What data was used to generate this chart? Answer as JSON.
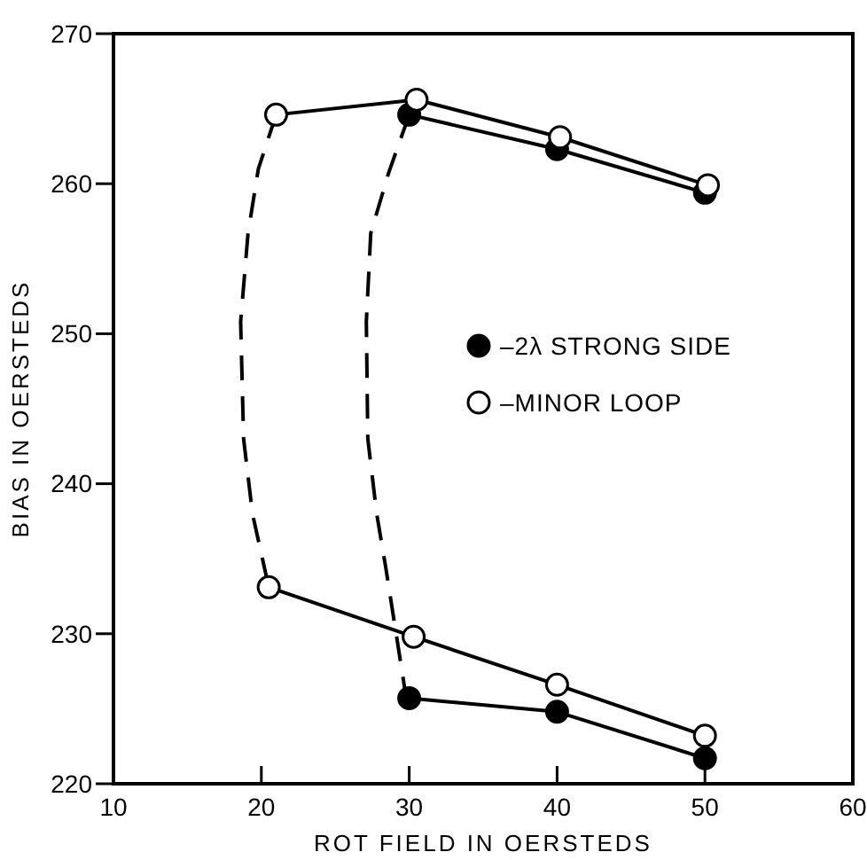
{
  "chart_data": {
    "type": "line",
    "xlabel": "ROT FIELD IN OERSTEDS",
    "ylabel": "BIAS IN OERSTEDS",
    "xlim": [
      10,
      60
    ],
    "xticks": [
      10,
      20,
      30,
      40,
      50,
      60
    ],
    "ylim": [
      220,
      270
    ],
    "yticks": [
      220,
      230,
      240,
      250,
      260,
      270
    ],
    "legend": "right",
    "series": [
      {
        "line_style": "dashed",
        "marker": "none",
        "color": "#000000",
        "x": [
          21,
          19.8,
          19.1,
          18.6,
          18.8,
          19.4,
          20.5
        ],
        "values": [
          264.6,
          261,
          256.7,
          250.8,
          243,
          238,
          233.1
        ]
      },
      {
        "line_style": "dashed",
        "marker": "none",
        "color": "#000000",
        "x": [
          30,
          28.6,
          27.4,
          27.1,
          27.2,
          27.8,
          28.4,
          29.8
        ],
        "values": [
          264.6,
          260.7,
          256.7,
          250.8,
          243,
          238,
          234.5,
          225.7
        ]
      },
      {
        "line_style": "solid",
        "marker": "none",
        "color": "#000000",
        "x": [
          30,
          40,
          50
        ],
        "values": [
          264.6,
          262.3,
          259.4
        ]
      },
      {
        "line_style": "solid",
        "marker": "none",
        "color": "#000000",
        "x": [
          30,
          40,
          50
        ],
        "values": [
          225.7,
          224.8,
          221.7
        ]
      },
      {
        "line_style": "solid",
        "marker": "none",
        "color": "#000000",
        "x": [
          21,
          30.5,
          40.2,
          50.2
        ],
        "values": [
          264.6,
          265.6,
          263.1,
          259.9
        ]
      },
      {
        "line_style": "solid",
        "marker": "none",
        "color": "#000000",
        "x": [
          20.5,
          30.3,
          40,
          50
        ],
        "values": [
          233.1,
          229.8,
          226.6,
          223.2
        ]
      },
      {
        "name": "–2λ STRONG SIDE",
        "type": "scatter",
        "marker": "circle",
        "color": "#000000",
        "x": [
          30,
          40,
          50,
          30,
          40,
          50
        ],
        "values": [
          264.6,
          262.3,
          259.4,
          225.7,
          224.8,
          221.7
        ]
      },
      {
        "name": "–MINOR LOOP",
        "type": "scatter",
        "marker": "circle",
        "color": "#ffffff",
        "x": [
          21,
          30.5,
          40.2,
          50.2,
          20.5,
          30.3,
          40,
          50
        ],
        "values": [
          264.6,
          265.6,
          263.1,
          259.9,
          233.1,
          229.8,
          226.6,
          223.2
        ]
      }
    ]
  }
}
